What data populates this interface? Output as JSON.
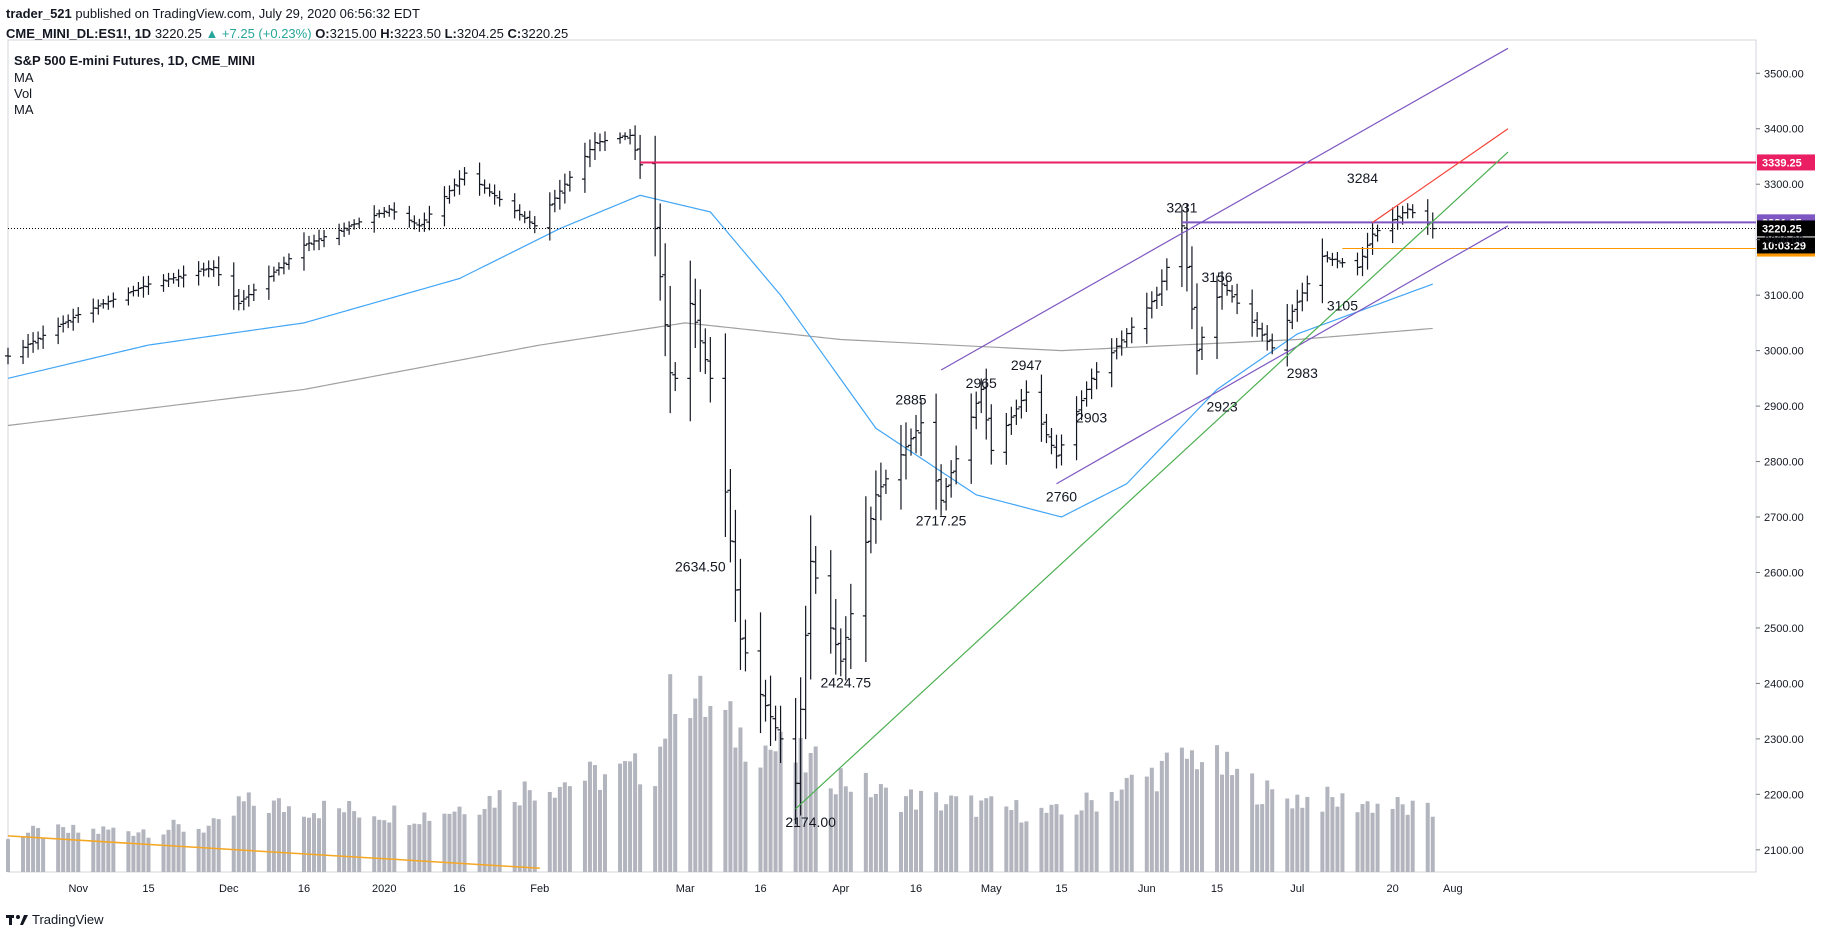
{
  "header": {
    "author": "trader_521",
    "published": "published on TradingView.com, July 29, 2020 06:56:32 EDT",
    "symbol": "CME_MINI_DL:ES1!, 1D",
    "last": "3220.25",
    "change": "▲ +7.25 (+0.23%)",
    "o_label": "O:",
    "o": "3215.00",
    "h_label": "H:",
    "h": "3223.50",
    "l_label": "L:",
    "l": "3204.25",
    "c_label": "C:",
    "c": "3220.25"
  },
  "legend": {
    "title": "S&P 500 E-mini Futures, 1D, CME_MINI",
    "lines": [
      "MA",
      "Vol",
      "MA"
    ]
  },
  "footer": {
    "brand": "TradingView"
  },
  "colors": {
    "bar": "#131722",
    "ma50": "#42a5f5",
    "ma200": "#a0a0a0",
    "volume": "#b2b5be",
    "vol_ma": "#f5a623",
    "resistance": "#e91e63",
    "channel": "#7e57c2",
    "trend": "#4caf50",
    "channel_upper": "#f44336",
    "support": "#ff9800",
    "current": "#000000"
  },
  "chart_data": {
    "type": "ohlc",
    "y_axis": {
      "min": 2060,
      "max": 3560,
      "ticks": [
        3500,
        3400,
        3300,
        3200,
        3100,
        3000,
        2900,
        2800,
        2700,
        2600,
        2500,
        2400,
        2300,
        2200,
        2100
      ],
      "tick_labels": [
        "3500.00",
        "3400.00",
        "3300.00",
        "3200.00",
        "3100.00",
        "3000.00",
        "2900.00",
        "2800.00",
        "2700.00",
        "2600.00",
        "2500.00",
        "2400.00",
        "2300.00",
        "2200.00",
        "2100.00"
      ]
    },
    "x_axis": {
      "start": "2019-10-18",
      "end": "2020-08-12",
      "ticks": [
        {
          "date": "2019-11-01",
          "label": "Nov"
        },
        {
          "date": "2019-11-15",
          "label": "15"
        },
        {
          "date": "2019-12-01",
          "label": "Dec"
        },
        {
          "date": "2019-12-16",
          "label": "16"
        },
        {
          "date": "2020-01-01",
          "label": "2020"
        },
        {
          "date": "2020-01-16",
          "label": "16"
        },
        {
          "date": "2020-02-01",
          "label": "Feb"
        },
        {
          "date": "2020-03-01",
          "label": "Mar"
        },
        {
          "date": "2020-03-16",
          "label": "16"
        },
        {
          "date": "2020-04-01",
          "label": "Apr"
        },
        {
          "date": "2020-04-16",
          "label": "16"
        },
        {
          "date": "2020-05-01",
          "label": "May"
        },
        {
          "date": "2020-05-15",
          "label": "15"
        },
        {
          "date": "2020-06-01",
          "label": "Jun"
        },
        {
          "date": "2020-06-15",
          "label": "15"
        },
        {
          "date": "2020-07-01",
          "label": "Jul"
        },
        {
          "date": "2020-07-20",
          "label": "20"
        },
        {
          "date": "2020-08-01",
          "label": "Aug"
        }
      ]
    },
    "price_path": [
      {
        "date": "2019-10-18",
        "close": 2990
      },
      {
        "date": "2019-11-01",
        "close": 3065
      },
      {
        "date": "2019-11-15",
        "close": 3120
      },
      {
        "date": "2019-11-28",
        "close": 3150
      },
      {
        "date": "2019-12-03",
        "close": 3085
      },
      {
        "date": "2019-12-16",
        "close": 3190
      },
      {
        "date": "2020-01-02",
        "close": 3255
      },
      {
        "date": "2020-01-08",
        "close": 3225
      },
      {
        "date": "2020-01-17",
        "close": 3320
      },
      {
        "date": "2020-01-31",
        "close": 3225
      },
      {
        "date": "2020-02-12",
        "close": 3375
      },
      {
        "date": "2020-02-19",
        "close": 3388
      },
      {
        "date": "2020-02-21",
        "close": 3335
      },
      {
        "date": "2020-02-24",
        "close": 3220
      },
      {
        "date": "2020-02-27",
        "close": 2960
      },
      {
        "date": "2020-02-28",
        "close": 2950
      },
      {
        "date": "2020-03-02",
        "close": 3085
      },
      {
        "date": "2020-03-06",
        "close": 2950
      },
      {
        "date": "2020-03-09",
        "close": 2745
      },
      {
        "date": "2020-03-12",
        "close": 2480
      },
      {
        "date": "2020-03-16",
        "close": 2380
      },
      {
        "date": "2020-03-20",
        "close": 2300
      },
      {
        "date": "2020-03-23",
        "close": 2220
      },
      {
        "date": "2020-03-26",
        "close": 2620
      },
      {
        "date": "2020-04-01",
        "close": 2440
      },
      {
        "date": "2020-04-08",
        "close": 2740
      },
      {
        "date": "2020-04-17",
        "close": 2870
      },
      {
        "date": "2020-04-21",
        "close": 2730
      },
      {
        "date": "2020-04-29",
        "close": 2930
      },
      {
        "date": "2020-05-01",
        "close": 2820
      },
      {
        "date": "2020-05-08",
        "close": 2925
      },
      {
        "date": "2020-05-14",
        "close": 2810
      },
      {
        "date": "2020-05-21",
        "close": 2950
      },
      {
        "date": "2020-06-03",
        "close": 3100
      },
      {
        "date": "2020-06-08",
        "close": 3225
      },
      {
        "date": "2020-06-11",
        "close": 3000
      },
      {
        "date": "2020-06-16",
        "close": 3120
      },
      {
        "date": "2020-06-26",
        "close": 3005
      },
      {
        "date": "2020-07-06",
        "close": 3170
      },
      {
        "date": "2020-07-13",
        "close": 3150
      },
      {
        "date": "2020-07-16",
        "close": 3210
      },
      {
        "date": "2020-07-23",
        "close": 3255
      },
      {
        "date": "2020-07-27",
        "close": 3230
      },
      {
        "date": "2020-07-28",
        "close": 3220
      }
    ],
    "sma50": [
      {
        "date": "2019-10-18",
        "value": 2950
      },
      {
        "date": "2019-11-15",
        "value": 3010
      },
      {
        "date": "2019-12-16",
        "value": 3050
      },
      {
        "date": "2020-01-16",
        "value": 3130
      },
      {
        "date": "2020-02-05",
        "value": 3220
      },
      {
        "date": "2020-02-21",
        "value": 3280
      },
      {
        "date": "2020-03-06",
        "value": 3250
      },
      {
        "date": "2020-03-20",
        "value": 3100
      },
      {
        "date": "2020-04-08",
        "value": 2860
      },
      {
        "date": "2020-04-28",
        "value": 2740
      },
      {
        "date": "2020-05-15",
        "value": 2700
      },
      {
        "date": "2020-05-28",
        "value": 2760
      },
      {
        "date": "2020-06-15",
        "value": 2930
      },
      {
        "date": "2020-07-01",
        "value": 3030
      },
      {
        "date": "2020-07-28",
        "value": 3120
      }
    ],
    "sma200": [
      {
        "date": "2019-10-18",
        "value": 2865
      },
      {
        "date": "2019-12-16",
        "value": 2930
      },
      {
        "date": "2020-02-01",
        "value": 3010
      },
      {
        "date": "2020-03-01",
        "value": 3050
      },
      {
        "date": "2020-04-01",
        "value": 3020
      },
      {
        "date": "2020-05-15",
        "value": 3000
      },
      {
        "date": "2020-07-01",
        "value": 3020
      },
      {
        "date": "2020-07-28",
        "value": 3040
      }
    ],
    "volume_path": [
      {
        "date": "2019-10-18",
        "v": 0.2
      },
      {
        "date": "2019-12-01",
        "v": 0.24
      },
      {
        "date": "2019-12-03",
        "v": 0.36
      },
      {
        "date": "2020-01-10",
        "v": 0.3
      },
      {
        "date": "2020-01-31",
        "v": 0.45
      },
      {
        "date": "2020-02-24",
        "v": 0.55
      },
      {
        "date": "2020-02-28",
        "v": 1.0
      },
      {
        "date": "2020-03-12",
        "v": 0.72
      },
      {
        "date": "2020-03-23",
        "v": 0.6
      },
      {
        "date": "2020-04-10",
        "v": 0.4
      },
      {
        "date": "2020-05-15",
        "v": 0.3
      },
      {
        "date": "2020-06-11",
        "v": 0.62
      },
      {
        "date": "2020-06-26",
        "v": 0.4
      },
      {
        "date": "2020-07-20",
        "v": 0.35
      },
      {
        "date": "2020-07-28",
        "v": 0.3
      }
    ],
    "volume_ma": [
      {
        "date": "2019-10-18",
        "v": 0.19
      },
      {
        "date": "2020-02-01",
        "v": 0.02
      }
    ],
    "price_labels": [
      {
        "text": "3231",
        "date": "2020-06-08",
        "price": 3231,
        "pos": "above"
      },
      {
        "text": "3284",
        "date": "2020-07-14",
        "price": 3284,
        "pos": "above"
      },
      {
        "text": "3156",
        "date": "2020-06-15",
        "price": 3156,
        "pos": "below"
      },
      {
        "text": "2965",
        "date": "2020-04-29",
        "price": 2965,
        "pos": "below"
      },
      {
        "text": "2947",
        "date": "2020-05-08",
        "price": 2947,
        "pos": "above"
      },
      {
        "text": "2903",
        "date": "2020-05-21",
        "price": 2903,
        "pos": "below"
      },
      {
        "text": "2885",
        "date": "2020-04-15",
        "price": 2885,
        "pos": "above"
      },
      {
        "text": "2923",
        "date": "2020-06-16",
        "price": 2923,
        "pos": "below"
      },
      {
        "text": "3105",
        "date": "2020-07-10",
        "price": 3105,
        "pos": "below"
      },
      {
        "text": "2983",
        "date": "2020-07-02",
        "price": 2983,
        "pos": "below"
      },
      {
        "text": "2760",
        "date": "2020-05-15",
        "price": 2760,
        "pos": "below"
      },
      {
        "text": "2717.25",
        "date": "2020-04-21",
        "price": 2717.25,
        "pos": "below"
      },
      {
        "text": "2634.50",
        "date": "2020-03-04",
        "price": 2634.5,
        "pos": "below"
      },
      {
        "text": "2424.75",
        "date": "2020-04-02",
        "price": 2424.75,
        "pos": "below"
      },
      {
        "text": "2174.00",
        "date": "2020-03-26",
        "price": 2174,
        "pos": "below"
      }
    ],
    "hlines": [
      {
        "price": 3339.25,
        "from": "2020-02-21",
        "color": "resistance",
        "label": "3339.25"
      },
      {
        "price": 3231.25,
        "from": "2020-06-08",
        "color": "channel",
        "label": "3231.25"
      },
      {
        "price": 3184.0,
        "from": "2020-07-10",
        "color": "support",
        "label": "3184.00"
      }
    ],
    "current_price": {
      "price": 3220.25,
      "label": "3220.25",
      "timer": "10:03:29"
    },
    "trendlines": [
      {
        "from": {
          "date": "2020-04-21",
          "price": 2965
        },
        "to": {
          "date": "2020-08-12",
          "price": 3545
        },
        "color": "channel"
      },
      {
        "from": {
          "date": "2020-05-14",
          "price": 2760
        },
        "to": {
          "date": "2020-08-12",
          "price": 3225
        },
        "color": "channel"
      },
      {
        "from": {
          "date": "2020-03-23",
          "price": 2174
        },
        "to": {
          "date": "2020-08-12",
          "price": 3358
        },
        "color": "trend"
      },
      {
        "from": {
          "date": "2020-07-16",
          "price": 3231
        },
        "to": {
          "date": "2020-08-12",
          "price": 3400
        },
        "color": "channel_upper"
      }
    ]
  }
}
